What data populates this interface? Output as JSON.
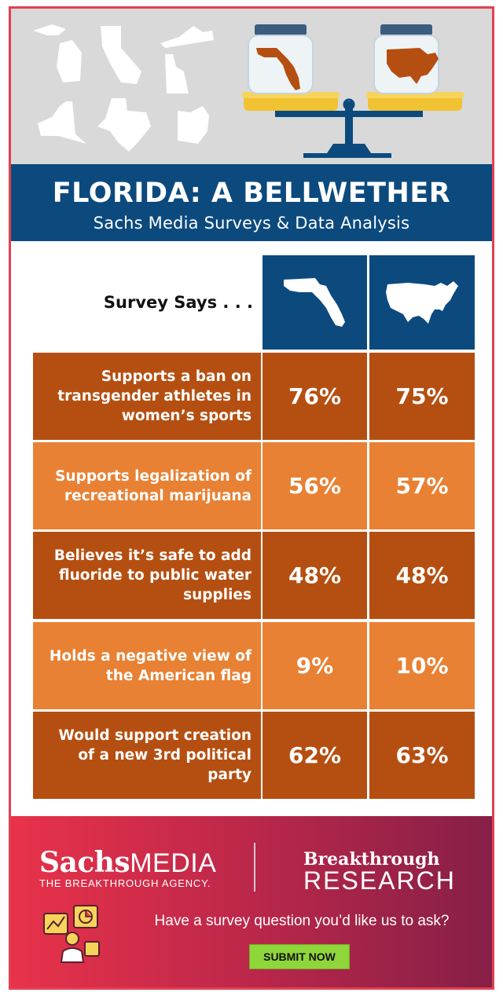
{
  "header": {
    "title": "FLORIDA: A BELLWETHER",
    "subtitle": "Sachs Media Surveys & Data Analysis"
  },
  "table": {
    "corner_label": "Survey Says . . .",
    "columns": [
      "florida-map-icon",
      "usa-map-icon"
    ],
    "rows": [
      {
        "label": "Supports a ban on transgender athletes in women’s sports",
        "florida": "76%",
        "us": "75%"
      },
      {
        "label": "Supports legalization of recreational marijuana",
        "florida": "56%",
        "us": "57%"
      },
      {
        "label": "Believes it’s safe to add fluoride to public water supplies",
        "florida": "48%",
        "us": "48%"
      },
      {
        "label": "Holds a negative view of the American flag",
        "florida": "9%",
        "us": "10%"
      },
      {
        "label": "Would support creation of a new 3rd political party",
        "florida": "62%",
        "us": "63%"
      }
    ]
  },
  "footer": {
    "sachs_brand": "Sachs",
    "sachs_brand_media": "MEDIA",
    "sachs_tagline": "THE BREAKTHROUGH AGENCY.",
    "breakthrough_line1": "Breakthrough",
    "breakthrough_line2": "RESEARCH",
    "cta_question": "Have a survey question you’d like us to ask?",
    "submit_label": "SUBMIT NOW"
  },
  "colors": {
    "navy": "#0c4a7e",
    "dark_orange": "#b54f11",
    "light_orange": "#e88133",
    "frame_red": "#e34050",
    "button_green": "#8fd63a"
  }
}
